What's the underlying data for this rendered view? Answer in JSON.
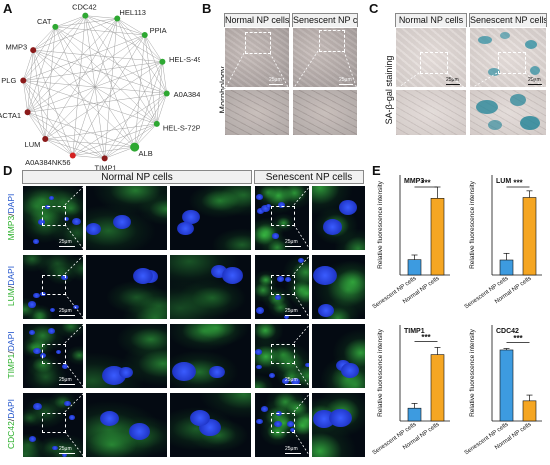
{
  "panels": {
    "a": "A",
    "b": "B",
    "c": "C",
    "d": "D",
    "e": "E"
  },
  "network": {
    "nodes": [
      {
        "name": "HEL113",
        "color": "#2ea832",
        "size": "small"
      },
      {
        "name": "PPIA",
        "color": "#2ea832",
        "size": "small"
      },
      {
        "name": "HEL-S-49",
        "color": "#2ea832",
        "size": "small"
      },
      {
        "name": "A0A384NY64",
        "color": "#2ea832",
        "size": "small"
      },
      {
        "name": "HEL-S-72P",
        "color": "#2ea832",
        "size": "small"
      },
      {
        "name": "ALB",
        "color": "#2ea832",
        "size": "large"
      },
      {
        "name": "TIMP1",
        "color": "#8b1a1a",
        "size": "small"
      },
      {
        "name": "A0A384NK56",
        "color": "#d42020",
        "size": "small"
      },
      {
        "name": "LUM",
        "color": "#8b1a1a",
        "size": "small"
      },
      {
        "name": "ACTA1",
        "color": "#8b1a1a",
        "size": "small"
      },
      {
        "name": "PLG",
        "color": "#8b1a1a",
        "size": "small"
      },
      {
        "name": "MMP3",
        "color": "#8b1a1a",
        "size": "small"
      },
      {
        "name": "CAT",
        "color": "#2ea832",
        "size": "small"
      },
      {
        "name": "CDC42",
        "color": "#2ea832",
        "size": "small"
      }
    ]
  },
  "morphology": {
    "normal_header": "Normal NP cells",
    "senescent_header": "Senescent NP cells",
    "row_label": "Morphology",
    "scale": "25μm"
  },
  "sa_gal": {
    "normal_header": "Normal NP cells",
    "senescent_header": "Senescent NP cells",
    "row_label": "SA-β-gal staining",
    "scale": "25μm"
  },
  "fluorescence": {
    "normal_header": "Normal NP cells",
    "senescent_header": "Senescent NP cells",
    "scale": "25μm",
    "rows": [
      {
        "marker": "MMP3",
        "slash": "/",
        "dapi": "DAPI"
      },
      {
        "marker": "LUM",
        "slash": "/",
        "dapi": "DAPI"
      },
      {
        "marker": "TIMP1",
        "slash": "/",
        "dapi": "DAPI"
      },
      {
        "marker": "CDC42",
        "slash": "/",
        "dapi": "DAPI"
      }
    ]
  },
  "chart_data": [
    {
      "type": "bar",
      "title": "MMP3",
      "ylabel": "Relative fluorescence intensity",
      "categories": [
        "Senescent NP cells",
        "Normal NP cells"
      ],
      "values": [
        2.3,
        11.5
      ],
      "errors": [
        0.7,
        1.7
      ],
      "ylim": [
        0,
        15
      ],
      "significance": "***",
      "colors": [
        "#3d9be0",
        "#f5a623"
      ]
    },
    {
      "type": "bar",
      "title": "LUM",
      "ylabel": "Relative fluorescence intensity",
      "categories": [
        "Senescent NP cells",
        "Normal NP cells"
      ],
      "values": [
        1.8,
        9.3
      ],
      "errors": [
        0.8,
        0.8
      ],
      "ylim": [
        0,
        12
      ],
      "significance": "***",
      "colors": [
        "#3d9be0",
        "#f5a623"
      ]
    },
    {
      "type": "bar",
      "title": "TIMP1",
      "ylabel": "Relative fluorescence intensity",
      "categories": [
        "Senescent NP cells",
        "Normal NP cells"
      ],
      "values": [
        1.6,
        8.3
      ],
      "errors": [
        0.6,
        0.9
      ],
      "ylim": [
        0,
        12
      ],
      "significance": "***",
      "colors": [
        "#3d9be0",
        "#f5a623"
      ]
    },
    {
      "type": "bar",
      "title": "CDC42",
      "ylabel": "Relative fluorescence intensity",
      "categories": [
        "Senescent NP cells",
        "Normal NP cells"
      ],
      "values": [
        7.4,
        2.1
      ],
      "errors": [
        0.15,
        0.6
      ],
      "ylim": [
        0,
        10
      ],
      "significance": "***",
      "colors": [
        "#3d9be0",
        "#f5a623"
      ]
    }
  ]
}
